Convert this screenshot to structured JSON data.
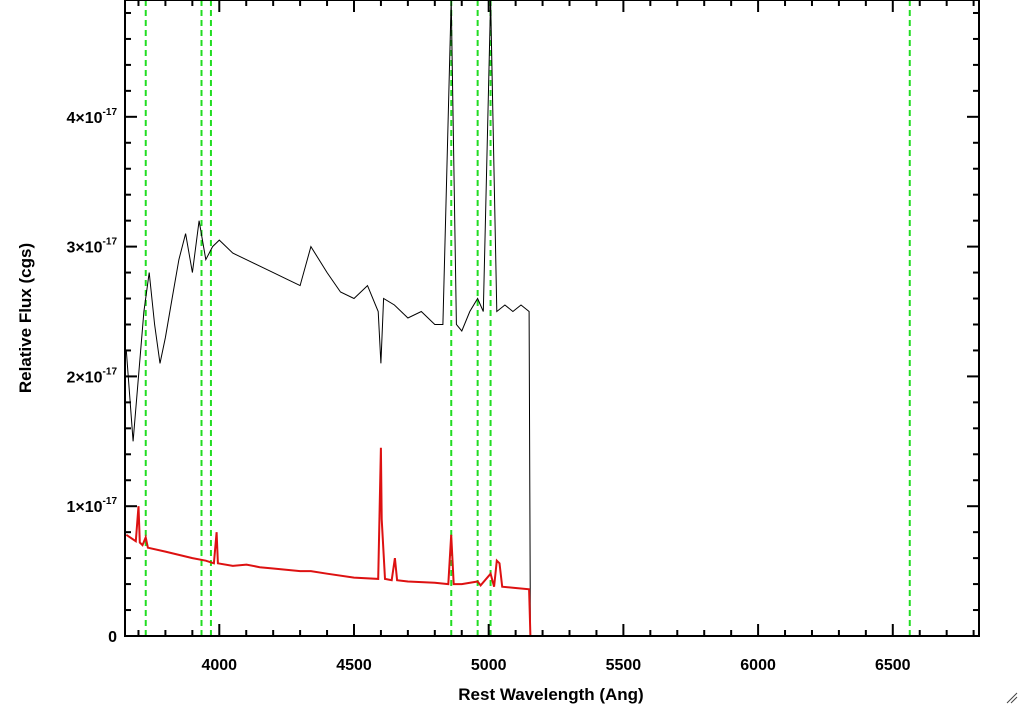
{
  "chart_data": {
    "type": "line",
    "xlabel": "Rest Wavelength (Ang)",
    "ylabel": "Relative Flux (cgs)",
    "xlim": [
      3650,
      6820
    ],
    "ylim": [
      0,
      4.9e-17
    ],
    "x_ticks": [
      {
        "value": 4000,
        "label": "4000"
      },
      {
        "value": 4500,
        "label": "4500"
      },
      {
        "value": 5000,
        "label": "5000"
      },
      {
        "value": 5500,
        "label": "5500"
      },
      {
        "value": 6000,
        "label": "6000"
      },
      {
        "value": 6500,
        "label": "6500"
      }
    ],
    "y_ticks": [
      {
        "value": 0,
        "label": "0",
        "exponent": ""
      },
      {
        "value": 1e-17,
        "label": "1×10",
        "exponent": "-17"
      },
      {
        "value": 2e-17,
        "label": "2×10",
        "exponent": "-17"
      },
      {
        "value": 3e-17,
        "label": "3×10",
        "exponent": "-17"
      },
      {
        "value": 4e-17,
        "label": "4×10",
        "exponent": "-17"
      }
    ],
    "grid": false,
    "reference_lines": [
      3727,
      3934,
      3969,
      4861,
      4959,
      5007,
      6563
    ],
    "series": [
      {
        "role": "spectrum",
        "color": "#000000",
        "x": [
          3655,
          3680,
          3700,
          3720,
          3740,
          3760,
          3780,
          3800,
          3825,
          3850,
          3875,
          3900,
          3925,
          3950,
          3975,
          4000,
          4050,
          4100,
          4150,
          4200,
          4250,
          4300,
          4340,
          4400,
          4450,
          4500,
          4550,
          4590,
          4600,
          4610,
          4650,
          4700,
          4750,
          4800,
          4830,
          4861,
          4880,
          4900,
          4930,
          4959,
          4980,
          5007,
          5030,
          5060,
          5090,
          5120,
          5150,
          5155,
          5170,
          5300,
          5600,
          6000,
          6400,
          6820
        ],
        "y": [
          2.2e-17,
          1.5e-17,
          2e-17,
          2.5e-17,
          2.8e-17,
          2.4e-17,
          2.1e-17,
          2.3e-17,
          2.6e-17,
          2.9e-17,
          3.1e-17,
          2.8e-17,
          3.2e-17,
          2.9e-17,
          3e-17,
          3.05e-17,
          2.95e-17,
          2.9e-17,
          2.85e-17,
          2.8e-17,
          2.75e-17,
          2.7e-17,
          3e-17,
          2.8e-17,
          2.65e-17,
          2.6e-17,
          2.7e-17,
          2.5e-17,
          2.1e-17,
          2.6e-17,
          2.55e-17,
          2.45e-17,
          2.5e-17,
          2.4e-17,
          2.4e-17,
          4.9e-17,
          2.4e-17,
          2.35e-17,
          2.5e-17,
          2.6e-17,
          2.5e-17,
          4.9e-17,
          2.5e-17,
          2.55e-17,
          2.5e-17,
          2.55e-17,
          2.5e-17,
          0.0,
          0.0,
          0.0,
          0.0,
          0.0,
          0.0,
          0.0
        ]
      },
      {
        "role": "model",
        "color": "#dd1111",
        "x": [
          3655,
          3690,
          3700,
          3705,
          3715,
          3727,
          3735,
          3800,
          3900,
          3950,
          3980,
          3990,
          3995,
          4050,
          4101,
          4150,
          4200,
          4300,
          4340,
          4400,
          4500,
          4590,
          4600,
          4603,
          4615,
          4640,
          4652,
          4660,
          4700,
          4800,
          4850,
          4861,
          4870,
          4900,
          4959,
          4970,
          5007,
          5020,
          5030,
          5040,
          5050,
          5100,
          5150,
          5155,
          5160,
          5400,
          5800,
          6200,
          6600,
          6820
        ],
        "y": [
          7.8e-18,
          7.3e-18,
          1e-17,
          7.2e-18,
          7e-18,
          7.6e-18,
          6.8e-18,
          6.5e-18,
          6e-18,
          5.8e-18,
          5.6e-18,
          8e-18,
          5.6e-18,
          5.4e-18,
          5.5e-18,
          5.3e-18,
          5.2e-18,
          5e-18,
          5e-18,
          4.8e-18,
          4.5e-18,
          4.4e-18,
          1.45e-17,
          9e-18,
          4.4e-18,
          4.3e-18,
          6e-18,
          4.3e-18,
          4.2e-18,
          4.1e-18,
          4e-18,
          7.8e-18,
          4e-18,
          4e-18,
          4.2e-18,
          3.9e-18,
          4.8e-18,
          3.8e-18,
          5.8e-18,
          5.6e-18,
          3.8e-18,
          3.7e-18,
          3.6e-18,
          0.0,
          0.0,
          0.0,
          0.0,
          0.0,
          0.0,
          0.0
        ]
      }
    ],
    "colors": {
      "axis": "#000000",
      "reference_line": "#22dd22"
    }
  }
}
